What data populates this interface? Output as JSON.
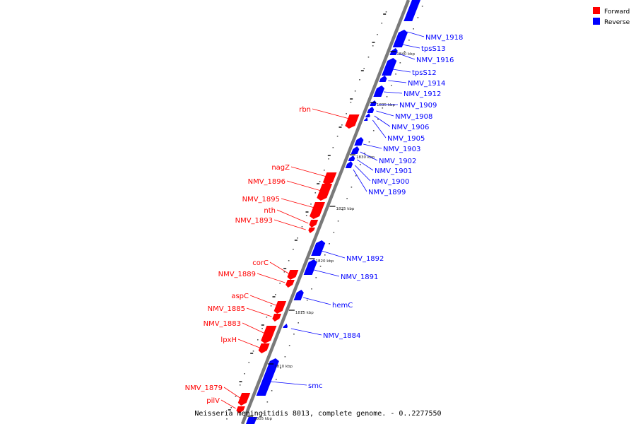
{
  "colors": {
    "forward": "#ff0000",
    "reverse": "#0000ff",
    "backbone": "#7a7a7a"
  },
  "legend": [
    {
      "label": "Forward",
      "color": "#ff0000"
    },
    {
      "label": "Reverse",
      "color": "#0000ff"
    }
  ],
  "caption": "Neisseria meningitidis 8013, complete genome. - 0..2277550",
  "ticks": [
    "1805 kbp",
    "1810 kbp",
    "1815 kbp",
    "1820 kbp",
    "1825 kbp",
    "1830 kbp",
    "1835 kbp",
    "1840 kbp"
  ],
  "reverse_genes": [
    "NMV_1918",
    "tpsS13",
    "NMV_1916",
    "tpsS12",
    "NMV_1914",
    "NMV_1912",
    "NMV_1909",
    "NMV_1908",
    "NMV_1906",
    "NMV_1905",
    "NMV_1903",
    "NMV_1902",
    "NMV_1901",
    "NMV_1900",
    "NMV_1899",
    "NMV_1892",
    "NMV_1891",
    "hemC",
    "NMV_1884",
    "smc"
  ],
  "forward_genes": [
    "rbn",
    "nagZ",
    "NMV_1896",
    "NMV_1895",
    "nth",
    "NMV_1893",
    "corC",
    "NMV_1889",
    "aspC",
    "NMV_1885",
    "NMV_1883",
    "lpxH",
    "NMV_1879",
    "pilV"
  ]
}
